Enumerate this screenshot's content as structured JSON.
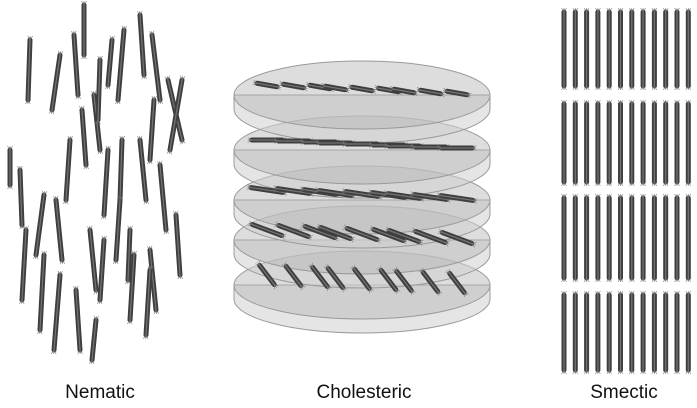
{
  "labels": {
    "nematic": "Nematic",
    "cholesteric": "Cholesteric",
    "smectic": "Smectic"
  },
  "colors": {
    "rod": "#3e3e3e",
    "rod_highlight": "#8a8a8a",
    "disk_fill": "#b4b4b4",
    "disk_edge": "#9a9a9a",
    "background": "#ffffff"
  }
}
